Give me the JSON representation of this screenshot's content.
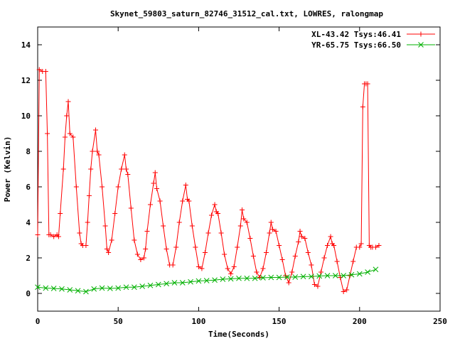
{
  "chart_data": {
    "type": "line",
    "title": "Skynet_59803_saturn_82746_31512_cal.txt, LOWRES, ralongmap",
    "xlabel": "Time(Seconds)",
    "ylabel": "Power (Kelvin)",
    "xlim": [
      0,
      250
    ],
    "ylim": [
      -1,
      15
    ],
    "xticks": [
      0,
      50,
      100,
      150,
      200,
      250
    ],
    "yticks": [
      0,
      2,
      4,
      6,
      8,
      10,
      12,
      14
    ],
    "grid": false,
    "legend_position": "top-right",
    "series": [
      {
        "name": "XL-43.42 Tsys:46.41",
        "color": "#ff0000",
        "marker": "+",
        "x": [
          0,
          1,
          3,
          5,
          6,
          7,
          8,
          10,
          12,
          13,
          14,
          16,
          17,
          18,
          19,
          20,
          22,
          24,
          26,
          27,
          28,
          30,
          31,
          32,
          33,
          34,
          36,
          37,
          38,
          40,
          42,
          43,
          44,
          46,
          48,
          50,
          52,
          54,
          55,
          56,
          58,
          60,
          62,
          64,
          66,
          67,
          68,
          70,
          72,
          73,
          74,
          76,
          78,
          80,
          82,
          84,
          86,
          88,
          90,
          92,
          93,
          94,
          96,
          98,
          100,
          102,
          104,
          106,
          108,
          110,
          111,
          112,
          114,
          116,
          118,
          120,
          122,
          124,
          126,
          127,
          128,
          130,
          132,
          134,
          136,
          138,
          140,
          142,
          144,
          145,
          146,
          148,
          150,
          152,
          154,
          156,
          158,
          160,
          162,
          163,
          164,
          166,
          168,
          170,
          172,
          174,
          176,
          178,
          180,
          182,
          183,
          184,
          186,
          188,
          190,
          192,
          194,
          196,
          198,
          200,
          201,
          202,
          203,
          204,
          205,
          206,
          207,
          208,
          210,
          212
        ],
        "y": [
          3.3,
          12.6,
          12.5,
          12.5,
          9.0,
          3.3,
          3.3,
          3.2,
          3.3,
          3.2,
          4.5,
          7.0,
          8.8,
          10.0,
          10.8,
          9.0,
          8.8,
          6.0,
          3.4,
          2.8,
          2.7,
          2.7,
          4.0,
          5.5,
          7.0,
          8.0,
          9.2,
          8.0,
          7.8,
          6.0,
          3.8,
          2.5,
          2.3,
          3.0,
          4.5,
          6.0,
          7.0,
          7.8,
          7.0,
          6.7,
          4.8,
          3.0,
          2.2,
          1.9,
          2.0,
          2.5,
          3.5,
          5.0,
          6.2,
          6.8,
          5.9,
          5.2,
          3.8,
          2.5,
          1.6,
          1.6,
          2.6,
          4.0,
          5.2,
          6.1,
          5.3,
          5.2,
          3.8,
          2.6,
          1.5,
          1.4,
          2.3,
          3.4,
          4.4,
          5.0,
          4.6,
          4.5,
          3.4,
          2.2,
          1.4,
          1.1,
          1.5,
          2.6,
          3.8,
          4.7,
          4.2,
          4.0,
          3.1,
          2.1,
          1.2,
          0.9,
          1.4,
          2.3,
          3.4,
          4.0,
          3.6,
          3.5,
          2.7,
          1.9,
          1.0,
          0.6,
          1.2,
          2.1,
          2.9,
          3.5,
          3.2,
          3.1,
          2.3,
          1.6,
          0.5,
          0.4,
          1.2,
          2.0,
          2.7,
          3.2,
          2.8,
          2.7,
          1.8,
          0.9,
          0.1,
          0.2,
          1.0,
          1.8,
          2.6,
          2.6,
          2.8,
          10.5,
          11.8,
          11.8,
          11.8,
          2.7,
          2.6,
          2.6,
          2.6,
          2.7
        ]
      },
      {
        "name": "YR-65.75 Tsys:66.50",
        "color": "#00b000",
        "marker": "x",
        "x": [
          0,
          5,
          10,
          15,
          20,
          25,
          30,
          35,
          40,
          45,
          50,
          55,
          60,
          65,
          70,
          75,
          80,
          85,
          90,
          95,
          100,
          105,
          110,
          115,
          120,
          125,
          130,
          135,
          140,
          145,
          150,
          155,
          160,
          165,
          170,
          175,
          180,
          185,
          190,
          195,
          200,
          205,
          210
        ],
        "y": [
          0.35,
          0.3,
          0.28,
          0.25,
          0.2,
          0.15,
          0.1,
          0.25,
          0.3,
          0.28,
          0.3,
          0.35,
          0.35,
          0.4,
          0.45,
          0.5,
          0.55,
          0.6,
          0.6,
          0.65,
          0.7,
          0.72,
          0.75,
          0.8,
          0.82,
          0.85,
          0.85,
          0.85,
          0.88,
          0.9,
          0.9,
          0.92,
          0.92,
          0.95,
          0.95,
          0.98,
          1.0,
          1.0,
          1.0,
          1.05,
          1.1,
          1.2,
          1.35
        ]
      }
    ]
  }
}
